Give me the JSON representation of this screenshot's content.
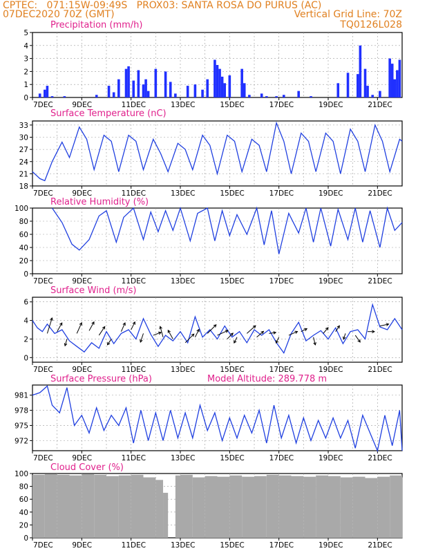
{
  "header": {
    "line1": "CPTEC:   071:15W-09:49S   PROX03: SANTA ROSA DO PURUS (AC)",
    "line2": "07DEC2020 70Z (GMT)",
    "grid_note": "Vertical Grid Line: 70Z",
    "model": "TQ0126L028"
  },
  "chart_data": [
    {
      "type": "bar",
      "title": "Precipitation (mm/h)",
      "ylim": [
        0,
        5
      ],
      "yticks": [
        "0",
        "1",
        "2",
        "3",
        "4",
        "5"
      ],
      "xticks": [
        "7DEC",
        "9DEC",
        "11DEC",
        "13DEC",
        "15DEC",
        "17DEC",
        "19DEC",
        "21DEC"
      ],
      "x_start_day": 7.0,
      "x_end_day": 22.0,
      "day": [
        7.3,
        7.5,
        7.6,
        7.8,
        8.3,
        9.6,
        10.1,
        10.3,
        10.5,
        10.8,
        10.9,
        11.1,
        11.3,
        11.5,
        11.6,
        11.7,
        12.0,
        12.4,
        12.6,
        12.8,
        13.3,
        13.6,
        13.9,
        14.1,
        14.4,
        14.5,
        14.6,
        14.7,
        14.8,
        15.0,
        15.5,
        15.6,
        15.8,
        16.3,
        16.5,
        16.9,
        17.2,
        17.8,
        18.3,
        19.4,
        19.8,
        20.2,
        20.3,
        20.5,
        20.6,
        20.8,
        21.1,
        21.5,
        21.6,
        21.7,
        21.8,
        21.9
      ],
      "mm_h": [
        0.3,
        0.6,
        0.9,
        0.1,
        0.1,
        0.2,
        0.9,
        0.4,
        1.4,
        2.2,
        2.4,
        1.3,
        2.1,
        1.0,
        1.4,
        0.5,
        2.2,
        2.0,
        1.2,
        0.3,
        0.9,
        1.0,
        0.6,
        1.4,
        2.9,
        2.5,
        2.2,
        1.6,
        1.1,
        1.7,
        2.2,
        1.1,
        0.2,
        0.3,
        0.1,
        0.1,
        0.2,
        0.5,
        0.1,
        1.1,
        1.9,
        1.8,
        4.0,
        2.2,
        0.9,
        0.2,
        0.5,
        3.0,
        2.6,
        1.4,
        2.1,
        2.9
      ]
    },
    {
      "type": "line",
      "title": "Surface Temperature (nC)",
      "ylim": [
        18,
        34
      ],
      "yticks": [
        "18",
        "21",
        "24",
        "27",
        "30",
        "33"
      ],
      "xticks": [
        "7DEC",
        "9DEC",
        "11DEC",
        "13DEC",
        "15DEC",
        "17DEC",
        "19DEC",
        "21DEC"
      ],
      "x_start_day": 7.0,
      "x_end_day": 22.0,
      "day": [
        7.0,
        7.3,
        7.5,
        7.8,
        8.2,
        8.5,
        8.9,
        9.2,
        9.5,
        9.9,
        10.2,
        10.5,
        10.9,
        11.2,
        11.5,
        11.9,
        12.2,
        12.5,
        12.9,
        13.2,
        13.5,
        13.9,
        14.2,
        14.5,
        14.9,
        15.2,
        15.5,
        15.9,
        16.2,
        16.5,
        16.9,
        17.2,
        17.5,
        17.9,
        18.2,
        18.5,
        18.9,
        19.2,
        19.5,
        19.9,
        20.2,
        20.5,
        20.9,
        21.2,
        21.5,
        21.9,
        22.0
      ],
      "temp_c": [
        21.5,
        19.8,
        19.3,
        24,
        28.8,
        25,
        32.5,
        29.5,
        22,
        30.5,
        29,
        21.5,
        30.5,
        29,
        22,
        29.5,
        26,
        21.5,
        28.5,
        27,
        22,
        30.5,
        28,
        21,
        30.5,
        29,
        21.5,
        29.5,
        28,
        21.5,
        33.5,
        29,
        21,
        31,
        29,
        21.5,
        31,
        29,
        21,
        32,
        29,
        21.5,
        33,
        29,
        21.5,
        29.5,
        29
      ]
    },
    {
      "type": "line",
      "title": "Relative Humidity (%)",
      "ylim": [
        0,
        100
      ],
      "yticks": [
        "0",
        "20",
        "40",
        "60",
        "80",
        "100"
      ],
      "xticks": [
        "7DEC",
        "9DEC",
        "11DEC",
        "13DEC",
        "15DEC",
        "17DEC",
        "19DEC",
        "21DEC"
      ],
      "x_start_day": 7.0,
      "x_end_day": 22.0,
      "day": [
        7.8,
        8.2,
        8.6,
        8.9,
        9.3,
        9.7,
        10.0,
        10.4,
        10.7,
        11.1,
        11.5,
        11.8,
        12.1,
        12.4,
        12.7,
        13.0,
        13.4,
        13.7,
        14.1,
        14.4,
        14.7,
        15.0,
        15.3,
        15.7,
        16.1,
        16.4,
        16.7,
        17.0,
        17.4,
        17.8,
        18.1,
        18.4,
        18.7,
        19.1,
        19.4,
        19.8,
        20.1,
        20.4,
        20.7,
        21.1,
        21.4,
        21.7,
        22.0
      ],
      "rh_pct": [
        100,
        78,
        45,
        36,
        52,
        88,
        96,
        48,
        86,
        100,
        52,
        94,
        64,
        96,
        66,
        100,
        50,
        92,
        100,
        50,
        96,
        58,
        90,
        60,
        100,
        44,
        96,
        30,
        92,
        62,
        100,
        48,
        100,
        42,
        98,
        52,
        100,
        48,
        96,
        40,
        100,
        66,
        78
      ]
    },
    {
      "type": "line",
      "title": "Surface Wind (m/s)",
      "ylim": [
        -0.5,
        6.5
      ],
      "yticks": [
        "0",
        "2",
        "4",
        "6"
      ],
      "xticks": [
        "7DEC",
        "9DEC",
        "11DEC",
        "13DEC",
        "15DEC",
        "17DEC",
        "19DEC",
        "21DEC"
      ],
      "x_start_day": 7.0,
      "x_end_day": 22.0,
      "day": [
        7.0,
        7.2,
        7.4,
        7.6,
        7.9,
        8.2,
        8.5,
        8.8,
        9.1,
        9.4,
        9.7,
        10.0,
        10.3,
        10.6,
        10.9,
        11.2,
        11.5,
        11.8,
        12.1,
        12.4,
        12.7,
        13.0,
        13.3,
        13.6,
        13.9,
        14.2,
        14.5,
        14.8,
        15.1,
        15.4,
        15.7,
        16.0,
        16.3,
        16.6,
        16.9,
        17.2,
        17.5,
        17.8,
        18.1,
        18.4,
        18.7,
        19.0,
        19.3,
        19.6,
        19.9,
        20.2,
        20.5,
        20.8,
        21.1,
        21.4,
        21.7,
        22.0
      ],
      "speed_ms": [
        4.0,
        3.2,
        2.8,
        3.6,
        2.6,
        3.0,
        1.8,
        1.2,
        0.6,
        1.6,
        1.0,
        2.8,
        1.5,
        2.6,
        3.0,
        2.0,
        4.2,
        2.5,
        1.2,
        2.4,
        1.8,
        2.8,
        1.6,
        4.4,
        2.2,
        3.0,
        2.0,
        3.4,
        2.2,
        2.8,
        1.6,
        3.0,
        2.4,
        3.0,
        1.6,
        0.5,
        2.6,
        3.8,
        1.8,
        2.4,
        2.9,
        2.0,
        3.2,
        1.5,
        2.8,
        3.0,
        2.0,
        5.7,
        3.3,
        3.0,
        4.2,
        3.0
      ],
      "arrows": [
        {
          "day": 7.6,
          "s": 2.6,
          "dx": 0.5,
          "dy": 1.6
        },
        {
          "day": 8.0,
          "s": 2.8,
          "dx": 0.5,
          "dy": 0.9
        },
        {
          "day": 8.4,
          "s": 2.0,
          "dx": -0.2,
          "dy": -0.7
        },
        {
          "day": 8.8,
          "s": 2.6,
          "dx": 0.5,
          "dy": 1.1
        },
        {
          "day": 9.3,
          "s": 2.9,
          "dx": 0.5,
          "dy": 0.9
        },
        {
          "day": 9.7,
          "s": 2.4,
          "dx": 0.6,
          "dy": 0.9
        },
        {
          "day": 10.2,
          "s": 2.0,
          "dx": -0.4,
          "dy": -0.6
        },
        {
          "day": 10.6,
          "s": 2.8,
          "dx": 0.4,
          "dy": 0.9
        },
        {
          "day": 11.0,
          "s": 3.0,
          "dx": 0.4,
          "dy": 0.8
        },
        {
          "day": 11.5,
          "s": 2.6,
          "dx": -0.3,
          "dy": -0.9
        },
        {
          "day": 11.9,
          "s": 2.4,
          "dx": 0.8,
          "dy": 0.3
        },
        {
          "day": 12.3,
          "s": 2.2,
          "dx": -0.3,
          "dy": 1.1
        },
        {
          "day": 12.7,
          "s": 2.0,
          "dx": -0.5,
          "dy": 0.9
        },
        {
          "day": 13.2,
          "s": 1.6,
          "dx": 0.9,
          "dy": 0.9
        },
        {
          "day": 13.6,
          "s": 2.2,
          "dx": 0.4,
          "dy": 0.8
        },
        {
          "day": 14.1,
          "s": 2.6,
          "dx": 0.9,
          "dy": 0.9
        },
        {
          "day": 14.5,
          "s": 2.4,
          "dx": 1.1,
          "dy": 0.5
        },
        {
          "day": 14.9,
          "s": 2.0,
          "dx": 0.6,
          "dy": 0.6
        },
        {
          "day": 15.3,
          "s": 2.2,
          "dx": -0.3,
          "dy": -0.6
        },
        {
          "day": 15.7,
          "s": 2.6,
          "dx": 0.9,
          "dy": 0.8
        },
        {
          "day": 16.1,
          "s": 2.2,
          "dx": 0.7,
          "dy": 0.6
        },
        {
          "day": 16.6,
          "s": 2.6,
          "dx": 0.7,
          "dy": 0.1
        },
        {
          "day": 17.0,
          "s": 2.2,
          "dx": -0.3,
          "dy": -0.6
        },
        {
          "day": 17.4,
          "s": 2.4,
          "dx": 0.9,
          "dy": 0.4
        },
        {
          "day": 17.9,
          "s": 2.8,
          "dx": 0.6,
          "dy": 0.3
        },
        {
          "day": 18.4,
          "s": 2.2,
          "dx": 0.2,
          "dy": -0.8
        },
        {
          "day": 18.8,
          "s": 2.6,
          "dx": 0.5,
          "dy": 0.6
        },
        {
          "day": 19.3,
          "s": 2.8,
          "dx": 0.4,
          "dy": 0.6
        },
        {
          "day": 19.7,
          "s": 2.6,
          "dx": -0.2,
          "dy": -0.6
        },
        {
          "day": 20.1,
          "s": 2.4,
          "dx": 0.5,
          "dy": -0.7
        },
        {
          "day": 20.6,
          "s": 2.8,
          "dx": 0.7,
          "dy": 0.0
        },
        {
          "day": 21.1,
          "s": 3.4,
          "dx": 0.9,
          "dy": 0.2
        }
      ]
    },
    {
      "type": "line",
      "title": "Surface Pressure (hPa)",
      "subtitle": "Model Altitude: 289.778 m",
      "ylim": [
        970,
        983
      ],
      "yticks": [
        "972",
        "975",
        "978",
        "981"
      ],
      "xticks": [
        "7DEC",
        "9DEC",
        "11DEC",
        "13DEC",
        "15DEC",
        "17DEC",
        "19DEC",
        "21DEC"
      ],
      "x_start_day": 7.0,
      "x_end_day": 22.0,
      "day": [
        7.0,
        7.3,
        7.6,
        7.8,
        8.1,
        8.4,
        8.7,
        9.0,
        9.3,
        9.6,
        9.9,
        10.2,
        10.5,
        10.8,
        11.1,
        11.4,
        11.7,
        12.0,
        12.3,
        12.6,
        12.9,
        13.2,
        13.5,
        13.8,
        14.1,
        14.4,
        14.7,
        15.0,
        15.3,
        15.6,
        15.9,
        16.2,
        16.5,
        16.8,
        17.1,
        17.4,
        17.7,
        18.0,
        18.3,
        18.6,
        18.9,
        19.2,
        19.5,
        19.8,
        20.1,
        20.4,
        20.7,
        21.0,
        21.3,
        21.6,
        21.9,
        22.0
      ],
      "hpa": [
        981,
        981.5,
        982.8,
        979,
        977.5,
        982.5,
        975,
        977,
        973.5,
        978.5,
        974,
        977,
        975,
        978.5,
        971.5,
        978,
        972,
        977.5,
        972,
        978,
        972.5,
        977.5,
        972.5,
        979,
        974,
        977.5,
        972,
        976.5,
        972.5,
        977,
        973.5,
        978,
        971.5,
        979,
        972.5,
        977,
        971.5,
        976.5,
        972,
        976,
        972.5,
        976.5,
        972.5,
        976,
        970.5,
        977,
        973.5,
        969.5,
        977,
        971,
        978,
        970
      ]
    },
    {
      "type": "bar",
      "title": "Cloud Cover (%)",
      "ylim": [
        0,
        100
      ],
      "yticks": [
        "0",
        "20",
        "40",
        "60",
        "80",
        "100"
      ],
      "xticks": [
        "7DEC",
        "9DEC",
        "11DEC",
        "13DEC",
        "15DEC",
        "17DEC",
        "19DEC",
        "21DEC"
      ],
      "x_start_day": 7.0,
      "x_end_day": 22.0,
      "day": [
        7.0,
        7.5,
        8.0,
        8.5,
        9.0,
        9.5,
        10.0,
        10.5,
        11.0,
        11.5,
        12.0,
        12.3,
        12.5,
        12.8,
        13.0,
        13.5,
        14.0,
        14.5,
        15.0,
        15.5,
        16.0,
        16.5,
        17.0,
        17.5,
        18.0,
        18.5,
        19.0,
        19.5,
        20.0,
        20.5,
        21.0,
        21.5,
        22.0
      ],
      "cover_pct": [
        98,
        99,
        98,
        97,
        99,
        98,
        96,
        97,
        98,
        94,
        90,
        70,
        0,
        97,
        98,
        94,
        96,
        95,
        97,
        95,
        96,
        98,
        97,
        96,
        95,
        97,
        96,
        94,
        95,
        93,
        95,
        97,
        94
      ]
    }
  ]
}
